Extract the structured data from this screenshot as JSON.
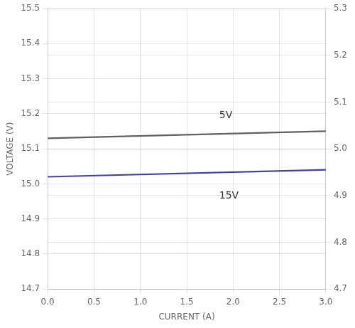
{
  "chart_data": {
    "type": "line",
    "xlabel": "CURRENT (A)",
    "ylabel": "VOLTAGE (V)",
    "x": [
      0.0,
      3.0
    ],
    "series": [
      {
        "color": "#606060",
        "values": [
          15.13,
          15.15
        ]
      },
      {
        "color": "#4040aa",
        "values": [
          15.02,
          15.04
        ]
      }
    ],
    "annotations": [
      {
        "text": "5V",
        "x": 1.85,
        "y": 15.195
      },
      {
        "text": "15V",
        "x": 1.85,
        "y": 14.965
      }
    ],
    "xlim": [
      0,
      3
    ],
    "xticks": [
      {
        "value": 0,
        "label": "0.0"
      },
      0.5,
      {
        "value": 1.0,
        "label": "1.0"
      },
      1.5,
      {
        "value": 2.0,
        "label": "2.0"
      },
      2.5,
      {
        "value": 3.0,
        "label": "3.0"
      }
    ],
    "ylim": [
      14.7,
      15.5
    ],
    "yticks": [
      14.7,
      14.8,
      14.9,
      {
        "value": 15.0,
        "label": "15.0"
      },
      15.1,
      15.2,
      15.3,
      15.4,
      15.5
    ],
    "y2lim": [
      4.7,
      5.3
    ],
    "y2ticks": [
      4.7,
      4.8,
      4.9,
      {
        "value": 5.0,
        "label": "5.0"
      },
      5.1,
      5.2,
      5.3
    ],
    "grid": true
  }
}
